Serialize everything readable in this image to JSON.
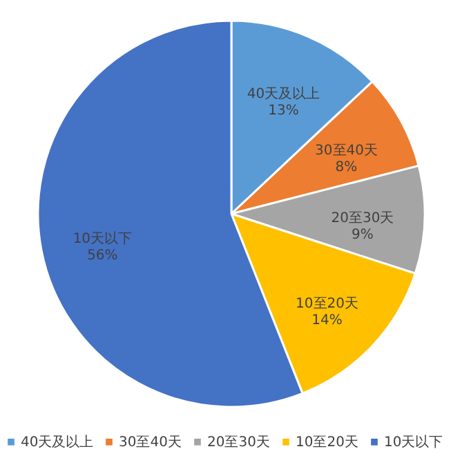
{
  "chart_data": {
    "type": "pie",
    "categories": [
      "40天及以上",
      "30至40天",
      "20至30天",
      "10至20天",
      "10天以下"
    ],
    "values": [
      13,
      8,
      9,
      14,
      56
    ],
    "value_labels": [
      "13%",
      "8%",
      "9%",
      "14%",
      "56%"
    ],
    "colors": [
      "#5b9bd5",
      "#ed7d31",
      "#a5a5a5",
      "#ffc000",
      "#4472c4"
    ],
    "legend": "bottom"
  }
}
